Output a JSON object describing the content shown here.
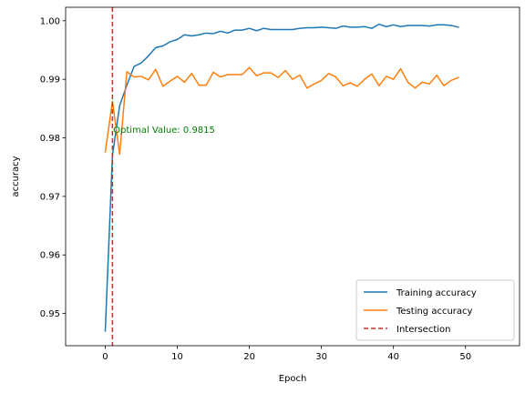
{
  "chart_data": {
    "type": "line",
    "title": "",
    "xlabel": "Epoch",
    "ylabel": "accuracy",
    "xlim": [
      -5.5,
      57.5
    ],
    "ylim": [
      0.9445,
      1.0023
    ],
    "xticks": [
      0,
      10,
      20,
      30,
      40,
      50
    ],
    "yticks": [
      0.95,
      0.96,
      0.97,
      0.98,
      0.99,
      1.0
    ],
    "xtick_labels": [
      "0",
      "10",
      "20",
      "30",
      "40",
      "50"
    ],
    "ytick_labels": [
      "0.95",
      "0.96",
      "0.97",
      "0.98",
      "0.99",
      "1.00"
    ],
    "grid": false,
    "legend_position": "lower right",
    "x": [
      0,
      1,
      2,
      3,
      4,
      5,
      6,
      7,
      8,
      9,
      10,
      11,
      12,
      13,
      14,
      15,
      16,
      17,
      18,
      19,
      20,
      21,
      22,
      23,
      24,
      25,
      26,
      27,
      28,
      29,
      30,
      31,
      32,
      33,
      34,
      35,
      36,
      37,
      38,
      39,
      40,
      41,
      42,
      43,
      44,
      45,
      46,
      47,
      48,
      49
    ],
    "series": [
      {
        "name": "Training accuracy",
        "color": "#1f77b4",
        "values": [
          0.947,
          0.977,
          0.9855,
          0.989,
          0.9922,
          0.9928,
          0.994,
          0.9954,
          0.9957,
          0.9964,
          0.9968,
          0.9976,
          0.9974,
          0.9976,
          0.9979,
          0.9978,
          0.9982,
          0.9979,
          0.9984,
          0.9984,
          0.9987,
          0.9983,
          0.9987,
          0.9985,
          0.9985,
          0.9985,
          0.9985,
          0.9987,
          0.9988,
          0.9988,
          0.9989,
          0.9988,
          0.9987,
          0.9991,
          0.9989,
          0.9989,
          0.999,
          0.9987,
          0.9994,
          0.999,
          0.9993,
          0.999,
          0.9992,
          0.9992,
          0.9992,
          0.9991,
          0.9993,
          0.9993,
          0.9992,
          0.9989
        ]
      },
      {
        "name": "Testing accuracy",
        "color": "#ff7f0e",
        "values": [
          0.9776,
          0.9862,
          0.9772,
          0.9913,
          0.9904,
          0.9905,
          0.9899,
          0.9917,
          0.9888,
          0.9897,
          0.9905,
          0.9895,
          0.991,
          0.989,
          0.989,
          0.9912,
          0.9904,
          0.9908,
          0.9908,
          0.9908,
          0.992,
          0.9906,
          0.9911,
          0.9911,
          0.9903,
          0.9915,
          0.99,
          0.9907,
          0.9885,
          0.9892,
          0.9898,
          0.991,
          0.9904,
          0.9889,
          0.9894,
          0.9888,
          0.99,
          0.9909,
          0.9889,
          0.9905,
          0.99,
          0.9918,
          0.9895,
          0.9885,
          0.9895,
          0.9892,
          0.9907,
          0.9889,
          0.9898,
          0.9903
        ]
      }
    ],
    "vline": {
      "name": "Intersection",
      "x": 1,
      "color": "#d62728"
    },
    "annotation": {
      "text": "Optimal Value: 0.9815",
      "x": 1.1,
      "y": 0.9815,
      "color": "#008000"
    }
  }
}
